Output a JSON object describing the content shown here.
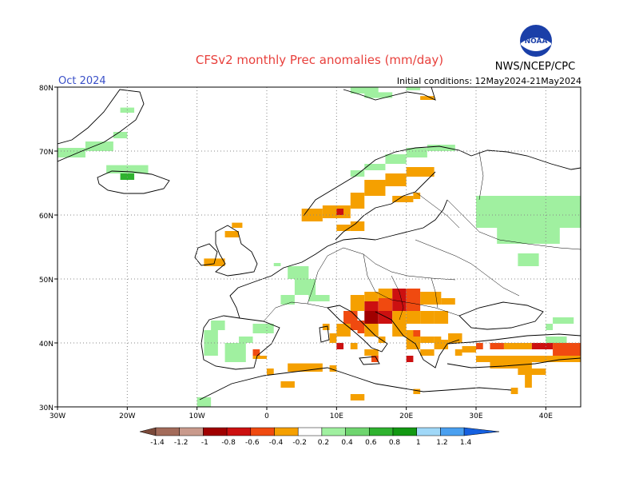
{
  "title": "CFSv2 monthly Prec anomalies (mm/day)",
  "month": "Oct 2024",
  "initial_conditions": "Initial conditions: 12May2024-21May2024",
  "agency": "NWS/NCEP/CPC",
  "logo_text": "NOAA",
  "map": {
    "lon_min": -30,
    "lon_max": 45,
    "lat_min": 30,
    "lat_max": 80,
    "lat_ticks": [
      "30N",
      "40N",
      "50N",
      "60N",
      "70N",
      "80N"
    ],
    "lon_ticks": [
      "30W",
      "20W",
      "10W",
      "0",
      "10E",
      "20E",
      "30E",
      "40E"
    ]
  },
  "legend": {
    "labels": [
      "-1.4",
      "-1.2",
      "-1",
      "-0.8",
      "-0.6",
      "-0.4",
      "-0.2",
      "0.2",
      "0.4",
      "0.6",
      "0.8",
      "1",
      "1.2",
      "1.4"
    ],
    "colors": [
      "#7b4a3a",
      "#a36b5a",
      "#c99a8c",
      "#a00000",
      "#cc1010",
      "#f04a10",
      "#f5a000",
      "#ffffff",
      "#a0f0a0",
      "#6fd56f",
      "#2fb22f",
      "#129812",
      "#a0d8f8",
      "#4aa0f0",
      "#1560e0"
    ]
  }
}
